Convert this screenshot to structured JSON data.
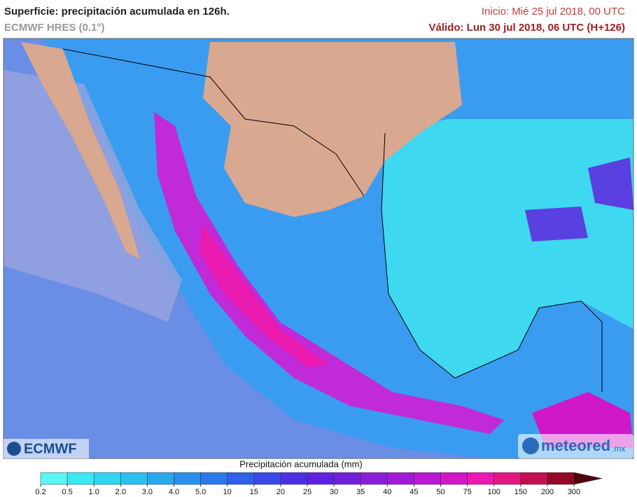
{
  "header": {
    "title": "Superficie: precipitación acumulada en 126h.",
    "model": "ECMWF HRES (0.1°)",
    "init": "Inicio: Mié 25 jul 2018, 00 UTC",
    "valid": "Válido: Lun 30 jul 2018, 06 UTC (H+126)"
  },
  "logos": {
    "left": "ECMWF",
    "right": "meteored",
    "right_suffix": ".mx"
  },
  "legend": {
    "title": "Precipitación acumulada (mm)",
    "ticks": [
      0.2,
      0.5,
      {
        "value": 1,
        "label": "1.0"
      },
      {
        "value": 2,
        "label": "2.0"
      },
      {
        "value": 3,
        "label": "3.0"
      },
      {
        "value": 4,
        "label": "4.0"
      },
      {
        "value": 5,
        "label": "5.0"
      },
      10,
      15,
      20,
      25,
      30,
      35,
      40,
      45,
      50,
      75,
      100,
      150,
      200,
      300
    ],
    "colors": [
      "#5ef5f5",
      "#3ee6f2",
      "#34d4f0",
      "#2ebfee",
      "#2aa8ec",
      "#2a90ea",
      "#2d78e8",
      "#3060e6",
      "#3a48e4",
      "#4a30e0",
      "#5e22dc",
      "#7220d8",
      "#8a1ed6",
      "#a01cd4",
      "#b81ad2",
      "#d018c8",
      "#e81ab0",
      "#e01a80",
      "#c01050",
      "#900a28"
    ],
    "overflow_color": "#500010"
  }
}
